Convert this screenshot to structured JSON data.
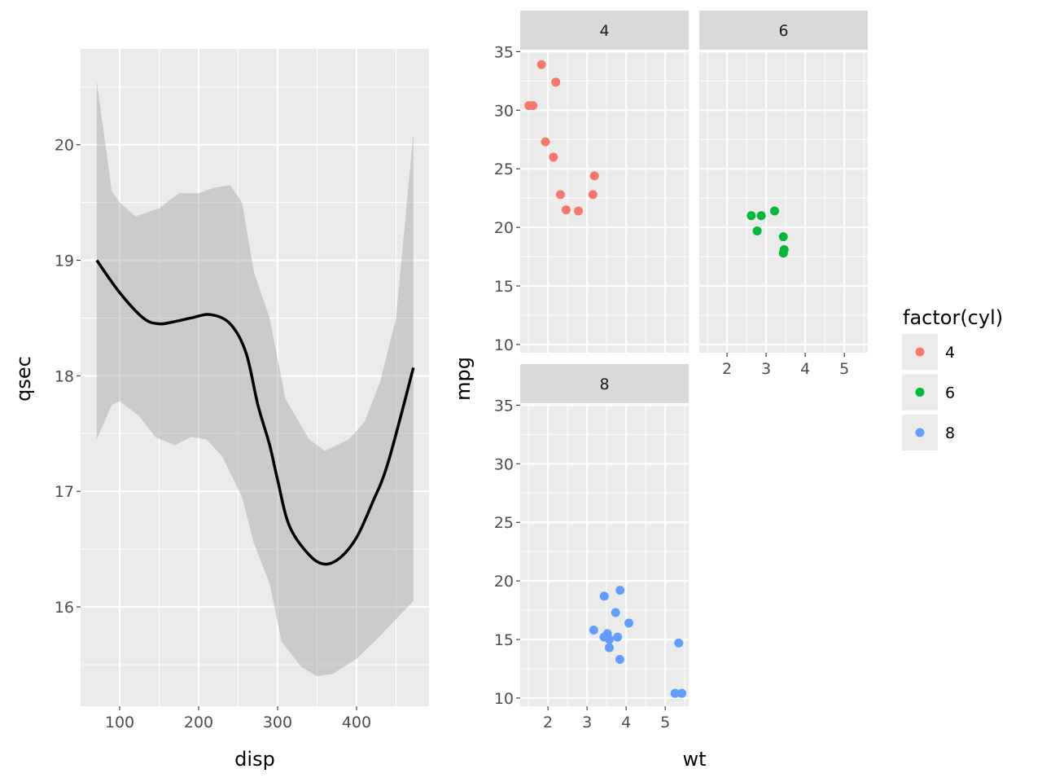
{
  "chart_data": [
    {
      "type": "line",
      "title": "",
      "xlabel": "disp",
      "ylabel": "qsec",
      "xlim": [
        50.5,
        491.8
      ],
      "ylim": [
        15.14,
        20.83
      ],
      "xticks": [
        100,
        200,
        300,
        400
      ],
      "yticks": [
        16,
        17,
        18,
        19,
        20
      ],
      "xticks_minor": [
        50,
        150,
        250,
        350,
        450
      ],
      "yticks_minor": [
        15.5,
        16.5,
        17.5,
        18.5,
        19.5,
        20.5
      ],
      "grid": true,
      "series": [
        {
          "name": "smooth",
          "x": [
            71,
            100,
            130,
            150,
            170,
            190,
            215,
            240,
            260,
            275,
            290,
            300,
            315,
            340,
            360,
            380,
            400,
            420,
            440,
            472
          ],
          "y": [
            19.0,
            18.72,
            18.5,
            18.45,
            18.47,
            18.5,
            18.53,
            18.45,
            18.2,
            17.75,
            17.4,
            17.1,
            16.7,
            16.45,
            16.37,
            16.43,
            16.6,
            16.9,
            17.25,
            18.07
          ]
        },
        {
          "name": "ci_upper",
          "x": [
            71,
            90,
            100,
            120,
            150,
            175,
            200,
            220,
            240,
            255,
            270,
            290,
            310,
            340,
            360,
            390,
            410,
            430,
            450,
            472
          ],
          "y": [
            20.55,
            19.6,
            19.5,
            19.38,
            19.45,
            19.58,
            19.58,
            19.63,
            19.65,
            19.5,
            18.9,
            18.5,
            17.8,
            17.45,
            17.35,
            17.45,
            17.6,
            17.95,
            18.5,
            20.1
          ]
        },
        {
          "name": "ci_lower",
          "x": [
            71,
            90,
            100,
            125,
            145,
            170,
            190,
            210,
            230,
            255,
            270,
            290,
            305,
            330,
            350,
            370,
            400,
            430,
            472
          ],
          "y": [
            17.45,
            17.75,
            17.78,
            17.65,
            17.47,
            17.4,
            17.47,
            17.45,
            17.3,
            16.95,
            16.55,
            16.2,
            15.7,
            15.48,
            15.4,
            15.42,
            15.55,
            15.75,
            16.05
          ]
        }
      ]
    },
    {
      "type": "scatter",
      "xlabel": "wt",
      "ylabel": "mpg",
      "xlim": [
        1.29,
        5.6
      ],
      "ylim": [
        9.3,
        35.1
      ],
      "xticks": [
        2,
        3,
        4,
        5
      ],
      "yticks": [
        10,
        15,
        20,
        25,
        30,
        35
      ],
      "xticks_minor": [
        1.5,
        2.5,
        3.5,
        4.5,
        5.5
      ],
      "yticks_minor": [
        12.5,
        17.5,
        22.5,
        27.5,
        32.5
      ],
      "grid": true,
      "legend": {
        "title": "factor(cyl)",
        "placement": "right",
        "entries": [
          "4",
          "6",
          "8"
        ]
      },
      "facets": [
        {
          "label": "4",
          "color": "#F8766D",
          "wt": [
            2.32,
            3.19,
            3.15,
            2.2,
            1.615,
            1.835,
            2.465,
            1.935,
            2.14,
            1.513,
            2.78
          ],
          "mpg": [
            22.8,
            24.4,
            22.8,
            32.4,
            30.4,
            33.9,
            21.5,
            27.3,
            26.0,
            30.4,
            21.4
          ]
        },
        {
          "label": "6",
          "color": "#00BA38",
          "wt": [
            2.62,
            2.875,
            3.215,
            3.46,
            3.44,
            3.44,
            2.77
          ],
          "mpg": [
            21.0,
            21.0,
            21.4,
            18.1,
            19.2,
            17.8,
            19.7
          ]
        },
        {
          "label": "8",
          "color": "#619CFF",
          "wt": [
            3.44,
            3.57,
            4.07,
            3.73,
            3.78,
            5.25,
            5.424,
            5.345,
            3.52,
            3.435,
            3.84,
            3.845,
            3.17,
            3.57
          ],
          "mpg": [
            18.7,
            14.3,
            16.4,
            17.3,
            15.2,
            10.4,
            10.4,
            14.7,
            15.5,
            15.2,
            13.3,
            19.2,
            15.8,
            15.0
          ]
        }
      ]
    }
  ]
}
